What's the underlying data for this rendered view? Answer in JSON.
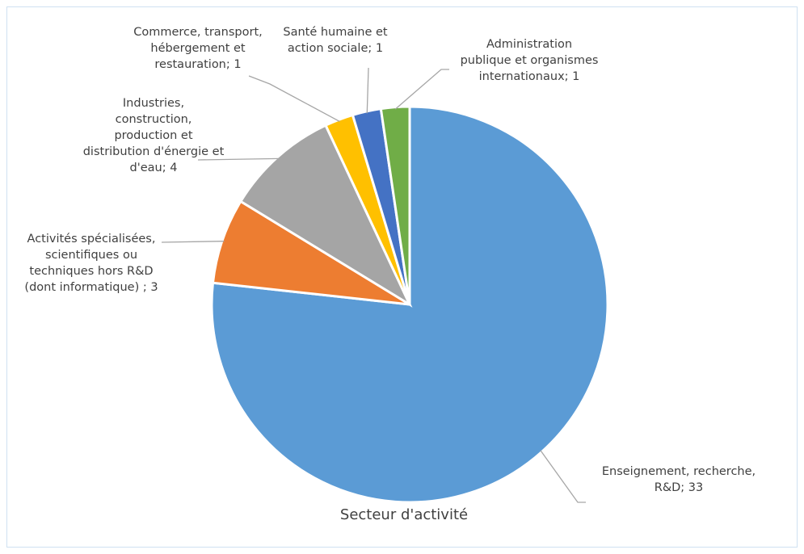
{
  "chart_data": {
    "type": "pie",
    "title": "Secteur d'activité",
    "slices": [
      {
        "label": "Enseignement, recherche, R&D",
        "value": 33,
        "color": "#5b9bd5",
        "data_label": "Enseignement, recherche,\nR&D; 33"
      },
      {
        "label": "Activités spécialisées, scientifiques ou techniques hors R&D (dont informatique)",
        "value": 3,
        "color": "#ed7d31",
        "data_label": "Activités spécialisées,\nscientifiques ou\ntechniques hors R&D\n(dont informatique) ; 3"
      },
      {
        "label": "Industries, construction, production et distribution d'énergie et d'eau",
        "value": 4,
        "color": "#a5a5a5",
        "data_label": "Industries,\nconstruction,\nproduction et\ndistribution d'énergie et\nd'eau; 4"
      },
      {
        "label": "Commerce, transport, hébergement et restauration",
        "value": 1,
        "color": "#ffc000",
        "data_label": "Commerce, transport,\nhébergement et\nrestauration; 1"
      },
      {
        "label": "Santé humaine et action sociale",
        "value": 1,
        "color": "#4472c4",
        "data_label": "Santé humaine et\naction sociale; 1"
      },
      {
        "label": "Administration publique et organismes internationaux",
        "value": 1,
        "color": "#70ad47",
        "data_label": "Administration\npublique et organismes\ninternationaux; 1"
      }
    ],
    "legend": "none"
  }
}
